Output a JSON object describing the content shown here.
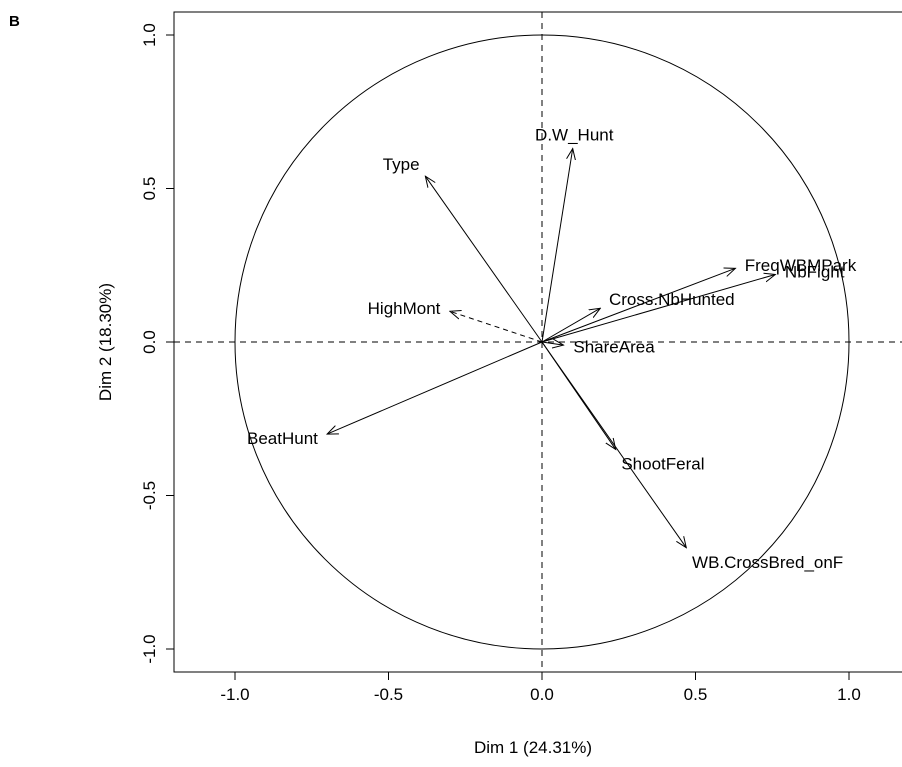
{
  "panel_label": "B",
  "chart_data": {
    "type": "scatter",
    "subtype": "PCA variable correlation circle",
    "xlabel": "Dim 1 (24.31%)",
    "ylabel": "Dim 2 (18.30%)",
    "xlim": [
      -1.2,
      1.2
    ],
    "ylim": [
      -1.1,
      1.1
    ],
    "xticks": [
      -1.0,
      -0.5,
      0.0,
      0.5,
      1.0
    ],
    "yticks": [
      -1.0,
      -0.5,
      0.0,
      0.5,
      1.0
    ],
    "xtick_labels": [
      "-1.0",
      "-0.5",
      "0.0",
      "0.5",
      "1.0"
    ],
    "ytick_labels": [
      "-1.0",
      "-0.5",
      "0.0",
      "0.5",
      "1.0"
    ],
    "unit_circle": true,
    "reference_lines": [
      "x=0",
      "y=0"
    ],
    "variables": [
      {
        "name": "D.W_Hunt",
        "x": 0.1,
        "y": 0.63,
        "dashed": false
      },
      {
        "name": "Type",
        "x": -0.38,
        "y": 0.54,
        "dashed": false
      },
      {
        "name": "FreqWBMPark",
        "x": 0.63,
        "y": 0.24,
        "dashed": false
      },
      {
        "name": "NbFight",
        "x": 0.76,
        "y": 0.22,
        "dashed": false
      },
      {
        "name": "Cross.NbHunted",
        "x": 0.19,
        "y": 0.11,
        "dashed": false
      },
      {
        "name": "HighMont",
        "x": -0.3,
        "y": 0.1,
        "dashed": true
      },
      {
        "name": "ShareArea",
        "x": 0.07,
        "y": -0.01,
        "dashed": false
      },
      {
        "name": "BeatHunt",
        "x": -0.7,
        "y": -0.3,
        "dashed": false
      },
      {
        "name": "ShootFeral",
        "x": 0.24,
        "y": -0.35,
        "dashed": false
      },
      {
        "name": "WB.CrossBred_onF",
        "x": 0.47,
        "y": -0.67,
        "dashed": false
      }
    ]
  }
}
